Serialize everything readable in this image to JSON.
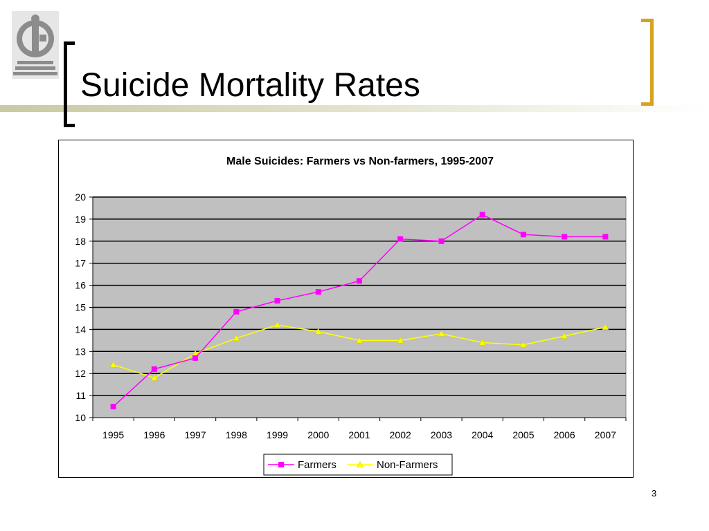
{
  "slide": {
    "title": "Suicide Mortality Rates",
    "page_number": "3"
  },
  "colors": {
    "accent_gold": "#d7a21f",
    "plot_background": "#c0c0c0",
    "farmers": "#ff00ff",
    "non_farmers": "#ffff00"
  },
  "chart_data": {
    "type": "line",
    "title": "Male Suicides: Farmers vs Non-farmers, 1995-2007",
    "xlabel": "",
    "ylabel": "",
    "categories": [
      "1995",
      "1996",
      "1997",
      "1998",
      "1999",
      "2000",
      "2001",
      "2002",
      "2003",
      "2004",
      "2005",
      "2006",
      "2007"
    ],
    "ylim": [
      10,
      20
    ],
    "yticks": [
      10,
      11,
      12,
      13,
      14,
      15,
      16,
      17,
      18,
      19,
      20
    ],
    "grid": true,
    "legend_position": "bottom",
    "series": [
      {
        "name": "Farmers",
        "marker": "square",
        "color": "#ff00ff",
        "values": [
          10.5,
          12.2,
          12.7,
          14.8,
          15.3,
          15.7,
          16.2,
          18.1,
          18.0,
          19.2,
          18.3,
          18.2,
          18.2
        ]
      },
      {
        "name": "Non-Farmers",
        "marker": "triangle",
        "color": "#ffff00",
        "values": [
          12.4,
          11.8,
          12.9,
          13.6,
          14.2,
          13.9,
          13.5,
          13.5,
          13.8,
          13.4,
          13.3,
          13.7,
          14.1
        ]
      }
    ]
  }
}
